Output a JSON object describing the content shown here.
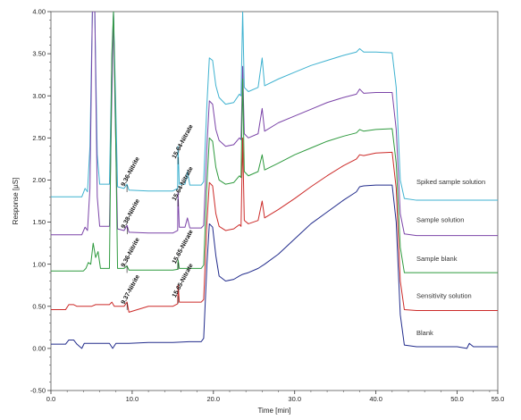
{
  "chart_data": {
    "type": "line",
    "title": "",
    "xlabel": "Time [min]",
    "ylabel": "Response [µS]",
    "xlim": [
      0,
      55
    ],
    "ylim": [
      -0.5,
      4.0
    ],
    "xticks": [
      0,
      10,
      20,
      30,
      40,
      50,
      55
    ],
    "xtick_labels": [
      "0.0",
      "10.0",
      "20.0",
      "30.0",
      "40.0",
      "50.0",
      "55.0"
    ],
    "yticks": [
      -0.5,
      0.0,
      0.5,
      1.0,
      1.5,
      2.0,
      2.5,
      3.0,
      3.5,
      4.0
    ],
    "ytick_labels": [
      "-0.50",
      "0.00",
      "0.50",
      "1.00",
      "1.50",
      "2.00",
      "2.50",
      "3.00",
      "3.50",
      "4.00"
    ],
    "grid": false,
    "legend": "series labels at right end of each trace",
    "series": [
      {
        "name": "Spiked sample solution",
        "color": "#3fb2d0",
        "points": [
          [
            0,
            1.8
          ],
          [
            3.8,
            1.8
          ],
          [
            4.2,
            1.9
          ],
          [
            4.5,
            1.86
          ],
          [
            4.8,
            2.4
          ],
          [
            5.1,
            4.0
          ],
          [
            5.4,
            4.0
          ],
          [
            5.7,
            2.3
          ],
          [
            6,
            1.95
          ],
          [
            7.2,
            1.95
          ],
          [
            7.5,
            3.4
          ],
          [
            7.7,
            4.0
          ],
          [
            7.9,
            3.2
          ],
          [
            8.2,
            1.92
          ],
          [
            9,
            1.9
          ],
          [
            9.36,
            1.95
          ],
          [
            9.6,
            1.88
          ],
          [
            12,
            1.87
          ],
          [
            15,
            1.87
          ],
          [
            15.6,
            1.9
          ],
          [
            15.64,
            2.4
          ],
          [
            15.8,
            1.95
          ],
          [
            16.5,
            1.95
          ],
          [
            16.8,
            2.1
          ],
          [
            17.1,
            1.94
          ],
          [
            18.5,
            1.94
          ],
          [
            18.8,
            1.98
          ],
          [
            19.2,
            2.9
          ],
          [
            19.5,
            3.45
          ],
          [
            19.9,
            3.42
          ],
          [
            20.3,
            3.12
          ],
          [
            20.7,
            2.98
          ],
          [
            21.5,
            2.9
          ],
          [
            22.5,
            2.92
          ],
          [
            23.2,
            3.02
          ],
          [
            23.4,
            3.0
          ],
          [
            23.6,
            4.0
          ],
          [
            23.8,
            3.1
          ],
          [
            24.3,
            3.05
          ],
          [
            25.5,
            3.1
          ],
          [
            26.0,
            3.45
          ],
          [
            26.3,
            3.12
          ],
          [
            28,
            3.2
          ],
          [
            30,
            3.28
          ],
          [
            32,
            3.36
          ],
          [
            34,
            3.42
          ],
          [
            36,
            3.48
          ],
          [
            37.6,
            3.52
          ],
          [
            38,
            3.56
          ],
          [
            38.5,
            3.52
          ],
          [
            40,
            3.52
          ],
          [
            42,
            3.51
          ],
          [
            42.5,
            3.1
          ],
          [
            43,
            2.0
          ],
          [
            43.5,
            1.78
          ],
          [
            45,
            1.76
          ],
          [
            50,
            1.76
          ],
          [
            55,
            1.76
          ]
        ]
      },
      {
        "name": "Sample solution",
        "color": "#7b44a8",
        "points": [
          [
            0,
            1.35
          ],
          [
            3.8,
            1.35
          ],
          [
            4.2,
            1.44
          ],
          [
            4.5,
            1.4
          ],
          [
            4.8,
            1.9
          ],
          [
            5.1,
            4.0
          ],
          [
            5.4,
            4.0
          ],
          [
            5.7,
            1.8
          ],
          [
            6,
            1.45
          ],
          [
            7.2,
            1.45
          ],
          [
            7.5,
            3.0
          ],
          [
            7.7,
            4.0
          ],
          [
            7.9,
            2.8
          ],
          [
            8.2,
            1.42
          ],
          [
            9,
            1.4
          ],
          [
            9.38,
            1.46
          ],
          [
            9.6,
            1.38
          ],
          [
            12,
            1.37
          ],
          [
            15,
            1.37
          ],
          [
            15.6,
            1.4
          ],
          [
            15.64,
            1.85
          ],
          [
            15.8,
            1.44
          ],
          [
            16.5,
            1.44
          ],
          [
            16.8,
            1.55
          ],
          [
            17.1,
            1.43
          ],
          [
            18.5,
            1.43
          ],
          [
            18.8,
            1.46
          ],
          [
            19.2,
            2.4
          ],
          [
            19.5,
            2.94
          ],
          [
            19.9,
            2.9
          ],
          [
            20.3,
            2.6
          ],
          [
            20.7,
            2.47
          ],
          [
            21.5,
            2.4
          ],
          [
            22.5,
            2.42
          ],
          [
            23.2,
            2.5
          ],
          [
            23.4,
            2.48
          ],
          [
            23.6,
            3.35
          ],
          [
            23.8,
            2.55
          ],
          [
            24.3,
            2.5
          ],
          [
            25.5,
            2.55
          ],
          [
            26.0,
            2.85
          ],
          [
            26.3,
            2.58
          ],
          [
            28,
            2.68
          ],
          [
            30,
            2.76
          ],
          [
            32,
            2.84
          ],
          [
            34,
            2.92
          ],
          [
            36,
            2.98
          ],
          [
            37.6,
            3.02
          ],
          [
            38,
            3.08
          ],
          [
            38.5,
            3.03
          ],
          [
            40,
            3.04
          ],
          [
            42,
            3.04
          ],
          [
            42.5,
            2.6
          ],
          [
            43,
            1.6
          ],
          [
            43.5,
            1.36
          ],
          [
            45,
            1.34
          ],
          [
            50,
            1.34
          ],
          [
            55,
            1.34
          ]
        ]
      },
      {
        "name": "Sample blank",
        "color": "#2e9a3e",
        "points": [
          [
            0,
            0.92
          ],
          [
            4,
            0.92
          ],
          [
            4.3,
            0.95
          ],
          [
            4.6,
            1.02
          ],
          [
            4.9,
            1.0
          ],
          [
            5.2,
            1.25
          ],
          [
            5.5,
            1.08
          ],
          [
            5.8,
            1.15
          ],
          [
            6.1,
            0.95
          ],
          [
            7.2,
            0.95
          ],
          [
            7.5,
            3.5
          ],
          [
            7.7,
            4.0
          ],
          [
            7.9,
            3.0
          ],
          [
            8.2,
            0.95
          ],
          [
            9,
            0.95
          ],
          [
            9.36,
            0.98
          ],
          [
            9.6,
            0.93
          ],
          [
            12,
            0.93
          ],
          [
            15,
            0.93
          ],
          [
            15.6,
            0.94
          ],
          [
            15.65,
            1.05
          ],
          [
            15.8,
            0.95
          ],
          [
            18.5,
            0.95
          ],
          [
            18.8,
            0.99
          ],
          [
            19.2,
            1.95
          ],
          [
            19.5,
            2.5
          ],
          [
            19.9,
            2.46
          ],
          [
            20.3,
            2.15
          ],
          [
            20.7,
            2.0
          ],
          [
            21.5,
            1.95
          ],
          [
            22.5,
            1.97
          ],
          [
            23.2,
            2.05
          ],
          [
            23.4,
            2.03
          ],
          [
            23.6,
            3.2
          ],
          [
            23.8,
            2.1
          ],
          [
            24.3,
            2.05
          ],
          [
            25.5,
            2.1
          ],
          [
            26.0,
            2.3
          ],
          [
            26.3,
            2.12
          ],
          [
            28,
            2.2
          ],
          [
            30,
            2.3
          ],
          [
            32,
            2.38
          ],
          [
            34,
            2.46
          ],
          [
            36,
            2.52
          ],
          [
            37.6,
            2.56
          ],
          [
            38,
            2.6
          ],
          [
            38.5,
            2.58
          ],
          [
            40,
            2.6
          ],
          [
            42,
            2.61
          ],
          [
            42.5,
            2.2
          ],
          [
            43,
            1.2
          ],
          [
            43.5,
            0.9
          ],
          [
            45,
            0.9
          ],
          [
            50,
            0.9
          ],
          [
            55,
            0.9
          ]
        ]
      },
      {
        "name": "Sensitivity solution",
        "color": "#cc2a28",
        "points": [
          [
            0,
            0.46
          ],
          [
            1.8,
            0.46
          ],
          [
            2.2,
            0.52
          ],
          [
            2.8,
            0.52
          ],
          [
            3.2,
            0.5
          ],
          [
            5,
            0.5
          ],
          [
            5.5,
            0.52
          ],
          [
            7.2,
            0.52
          ],
          [
            7.5,
            0.55
          ],
          [
            7.8,
            0.5
          ],
          [
            9,
            0.5
          ],
          [
            9.37,
            0.55
          ],
          [
            9.6,
            0.43
          ],
          [
            12,
            0.5
          ],
          [
            15,
            0.5
          ],
          [
            15.6,
            0.53
          ],
          [
            15.65,
            0.75
          ],
          [
            15.8,
            0.55
          ],
          [
            18.5,
            0.55
          ],
          [
            18.8,
            0.58
          ],
          [
            19.2,
            1.5
          ],
          [
            19.5,
            1.97
          ],
          [
            19.9,
            1.93
          ],
          [
            20.3,
            1.6
          ],
          [
            20.7,
            1.45
          ],
          [
            21.5,
            1.4
          ],
          [
            22.5,
            1.42
          ],
          [
            23.2,
            1.47
          ],
          [
            23.4,
            1.45
          ],
          [
            23.6,
            2.5
          ],
          [
            23.8,
            1.52
          ],
          [
            24.3,
            1.48
          ],
          [
            25.5,
            1.52
          ],
          [
            26.0,
            1.75
          ],
          [
            26.3,
            1.55
          ],
          [
            28,
            1.65
          ],
          [
            30,
            1.78
          ],
          [
            32,
            1.92
          ],
          [
            34,
            2.05
          ],
          [
            36,
            2.17
          ],
          [
            37.6,
            2.25
          ],
          [
            38,
            2.3
          ],
          [
            38.5,
            2.29
          ],
          [
            40,
            2.32
          ],
          [
            42,
            2.33
          ],
          [
            42.5,
            1.9
          ],
          [
            43,
            0.8
          ],
          [
            43.5,
            0.46
          ],
          [
            45,
            0.45
          ],
          [
            50,
            0.45
          ],
          [
            55,
            0.45
          ]
        ]
      },
      {
        "name": "Blank",
        "color": "#222c8c",
        "points": [
          [
            0,
            0.05
          ],
          [
            1.8,
            0.05
          ],
          [
            2.2,
            0.1
          ],
          [
            2.8,
            0.1
          ],
          [
            3.2,
            0.05
          ],
          [
            3.8,
            0.0
          ],
          [
            4.1,
            0.06
          ],
          [
            5,
            0.06
          ],
          [
            7.2,
            0.06
          ],
          [
            7.6,
            0.0
          ],
          [
            8,
            0.06
          ],
          [
            9,
            0.06
          ],
          [
            9.6,
            0.06
          ],
          [
            12,
            0.07
          ],
          [
            15,
            0.07
          ],
          [
            17,
            0.08
          ],
          [
            18.5,
            0.08
          ],
          [
            18.8,
            0.12
          ],
          [
            19.2,
            1.0
          ],
          [
            19.5,
            1.48
          ],
          [
            19.9,
            1.44
          ],
          [
            20.3,
            1.1
          ],
          [
            20.7,
            0.86
          ],
          [
            21.5,
            0.8
          ],
          [
            22.5,
            0.82
          ],
          [
            23.2,
            0.86
          ],
          [
            23.6,
            0.88
          ],
          [
            24.3,
            0.9
          ],
          [
            25.5,
            0.95
          ],
          [
            26.3,
            1.0
          ],
          [
            28,
            1.12
          ],
          [
            30,
            1.3
          ],
          [
            32,
            1.48
          ],
          [
            34,
            1.62
          ],
          [
            36,
            1.76
          ],
          [
            37.6,
            1.86
          ],
          [
            38,
            1.92
          ],
          [
            38.5,
            1.93
          ],
          [
            40,
            1.94
          ],
          [
            42,
            1.94
          ],
          [
            42.5,
            1.5
          ],
          [
            43,
            0.4
          ],
          [
            43.5,
            0.04
          ],
          [
            45,
            0.02
          ],
          [
            50,
            0.02
          ],
          [
            51.2,
            0.0
          ],
          [
            51.5,
            0.06
          ],
          [
            52,
            0.02
          ],
          [
            55,
            0.02
          ]
        ]
      }
    ],
    "peak_annotations": [
      {
        "text": "9.36-Nitrite",
        "x": 9.36,
        "y": 1.92
      },
      {
        "text": "9.38-Nitrite",
        "x": 9.38,
        "y": 1.42
      },
      {
        "text": "9.36-Nitrite",
        "x": 9.36,
        "y": 0.96
      },
      {
        "text": "9.37-Nitrite",
        "x": 9.37,
        "y": 0.52
      },
      {
        "text": "15.64-Nitrate",
        "x": 15.64,
        "y": 2.25
      },
      {
        "text": "15.64-Nitrate",
        "x": 15.64,
        "y": 1.75
      },
      {
        "text": "15.65-Nitrate",
        "x": 15.65,
        "y": 1.0
      },
      {
        "text": "15.65-Nitrate",
        "x": 15.65,
        "y": 0.6
      }
    ],
    "series_labels": [
      {
        "text": "Spiked sample solution",
        "y": 1.95
      },
      {
        "text": "Sample solution",
        "y": 1.5
      },
      {
        "text": "Sample blank",
        "y": 1.04
      },
      {
        "text": "Sensitivity solution",
        "y": 0.6
      },
      {
        "text": "Blank",
        "y": 0.16
      }
    ]
  }
}
